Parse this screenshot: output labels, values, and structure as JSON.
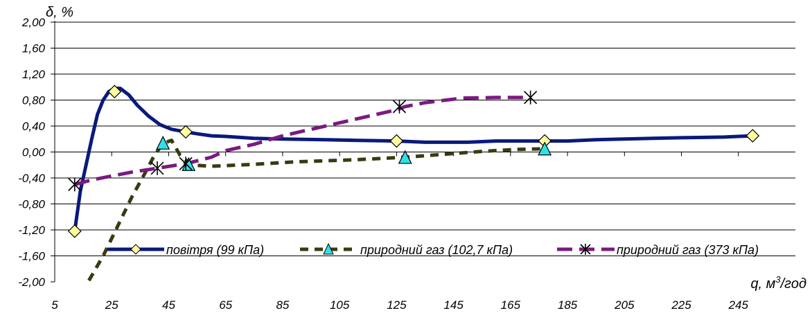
{
  "chart_data": {
    "type": "line",
    "ylabel": "δ, %",
    "xlabel": "q, м³/год",
    "xlabel_text": "q, м",
    "xlabel_sup": "3",
    "xlabel_tail": "/год",
    "xlim": [
      5,
      265
    ],
    "ylim": [
      -2.0,
      2.0
    ],
    "x_ticks": [
      "5",
      "25",
      "45",
      "65",
      "85",
      "105",
      "125",
      "145",
      "165",
      "185",
      "205",
      "225",
      "245"
    ],
    "x_tick_values": [
      5,
      25,
      45,
      65,
      85,
      105,
      125,
      145,
      165,
      185,
      205,
      225,
      245
    ],
    "y_ticks": [
      "2,00",
      "1,60",
      "1,20",
      "0,80",
      "0,40",
      "0,00",
      "-0,40",
      "-0,80",
      "-1,20",
      "-1,60",
      "-2,00"
    ],
    "y_tick_values": [
      2.0,
      1.6,
      1.2,
      0.8,
      0.4,
      0.0,
      -0.4,
      -0.8,
      -1.2,
      -1.6,
      -2.0
    ],
    "grid": "horizontal",
    "legend_position": "bottom-inside",
    "series": [
      {
        "name": "повітря (99 кПа)",
        "color": "#0a1a7a",
        "style": "solid",
        "marker": "diamond",
        "marker_fill": "#ffffa0",
        "line": [
          [
            12,
            -1.22
          ],
          [
            14,
            -0.6
          ],
          [
            16,
            -0.2
          ],
          [
            18,
            0.2
          ],
          [
            20,
            0.58
          ],
          [
            22,
            0.8
          ],
          [
            24,
            0.93
          ],
          [
            26,
            0.98
          ],
          [
            28,
            0.98
          ],
          [
            31,
            0.88
          ],
          [
            34,
            0.72
          ],
          [
            38,
            0.55
          ],
          [
            42,
            0.42
          ],
          [
            46,
            0.35
          ],
          [
            51,
            0.31
          ],
          [
            55,
            0.28
          ],
          [
            60,
            0.25
          ],
          [
            65,
            0.24
          ],
          [
            75,
            0.21
          ],
          [
            85,
            0.2
          ],
          [
            100,
            0.19
          ],
          [
            110,
            0.18
          ],
          [
            125,
            0.17
          ],
          [
            135,
            0.15
          ],
          [
            150,
            0.15
          ],
          [
            160,
            0.17
          ],
          [
            177,
            0.17
          ],
          [
            185,
            0.17
          ],
          [
            195,
            0.19
          ],
          [
            205,
            0.2
          ],
          [
            215,
            0.21
          ],
          [
            225,
            0.22
          ],
          [
            240,
            0.23
          ],
          [
            250,
            0.25
          ]
        ],
        "points": [
          [
            12,
            -1.22
          ],
          [
            26,
            0.93
          ],
          [
            51,
            0.31
          ],
          [
            125,
            0.17
          ],
          [
            177,
            0.17
          ],
          [
            250,
            0.25
          ]
        ]
      },
      {
        "name": "природний газ (102,7 кПа)",
        "color": "#3a3a10",
        "style": "dash",
        "marker": "triangle",
        "marker_fill": "#30e0e8",
        "line": [
          [
            17,
            -1.98
          ],
          [
            22,
            -1.6
          ],
          [
            27,
            -1.15
          ],
          [
            32,
            -0.7
          ],
          [
            37,
            -0.3
          ],
          [
            40,
            -0.05
          ],
          [
            43,
            0.13
          ],
          [
            46,
            0.18
          ],
          [
            49,
            -0.05
          ],
          [
            53,
            -0.2
          ],
          [
            60,
            -0.22
          ],
          [
            75,
            -0.19
          ],
          [
            90,
            -0.15
          ],
          [
            110,
            -0.12
          ],
          [
            128,
            -0.08
          ],
          [
            140,
            -0.04
          ],
          [
            155,
            0.01
          ],
          [
            167,
            0.04
          ],
          [
            177,
            0.05
          ]
        ],
        "points": [
          [
            43,
            0.13
          ],
          [
            52,
            -0.2
          ],
          [
            128,
            -0.09
          ],
          [
            177,
            0.04
          ]
        ]
      },
      {
        "name": "природний газ (373 кПа)",
        "color": "#7a1a80",
        "style": "longdash",
        "marker": "star",
        "marker_fill": "none",
        "line": [
          [
            12,
            -0.5
          ],
          [
            18,
            -0.43
          ],
          [
            25,
            -0.37
          ],
          [
            32,
            -0.31
          ],
          [
            41,
            -0.25
          ],
          [
            51,
            -0.18
          ],
          [
            60,
            -0.08
          ],
          [
            65,
            0.02
          ],
          [
            75,
            0.12
          ],
          [
            85,
            0.25
          ],
          [
            95,
            0.35
          ],
          [
            105,
            0.45
          ],
          [
            115,
            0.55
          ],
          [
            125,
            0.65
          ],
          [
            128,
            0.7
          ],
          [
            135,
            0.76
          ],
          [
            148,
            0.83
          ],
          [
            160,
            0.84
          ],
          [
            172,
            0.84
          ]
        ],
        "points": [
          [
            12,
            -0.5
          ],
          [
            41,
            -0.25
          ],
          [
            51,
            -0.18
          ],
          [
            126,
            0.7
          ],
          [
            172,
            0.84
          ]
        ]
      }
    ]
  }
}
